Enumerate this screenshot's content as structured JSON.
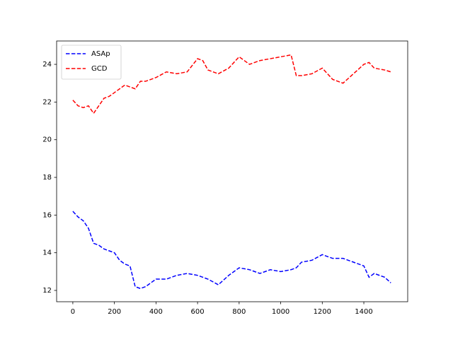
{
  "chart_data": {
    "type": "line",
    "x": [
      0,
      25,
      50,
      75,
      100,
      125,
      150,
      175,
      200,
      225,
      250,
      275,
      300,
      325,
      350,
      400,
      450,
      500,
      550,
      600,
      625,
      650,
      700,
      750,
      800,
      850,
      900,
      950,
      1000,
      1050,
      1075,
      1100,
      1150,
      1200,
      1250,
      1300,
      1350,
      1400,
      1425,
      1450,
      1500,
      1530
    ],
    "series": [
      {
        "name": "ASAp",
        "color": "#0000ff",
        "values": [
          16.2,
          15.9,
          15.7,
          15.3,
          14.5,
          14.4,
          14.2,
          14.1,
          14.0,
          13.6,
          13.4,
          13.3,
          12.2,
          12.1,
          12.2,
          12.6,
          12.6,
          12.8,
          12.9,
          12.8,
          12.7,
          12.6,
          12.3,
          12.8,
          13.2,
          13.1,
          12.9,
          13.1,
          13.0,
          13.1,
          13.2,
          13.5,
          13.6,
          13.9,
          13.7,
          13.7,
          13.5,
          13.3,
          12.7,
          12.9,
          12.7,
          12.4
        ]
      },
      {
        "name": "GCD",
        "color": "#ff0000",
        "values": [
          22.1,
          21.8,
          21.7,
          21.8,
          21.4,
          21.8,
          22.2,
          22.3,
          22.5,
          22.7,
          22.9,
          22.8,
          22.7,
          23.1,
          23.1,
          23.3,
          23.6,
          23.5,
          23.6,
          24.3,
          24.2,
          23.7,
          23.5,
          23.8,
          24.4,
          24.0,
          24.2,
          24.3,
          24.4,
          24.5,
          23.4,
          23.4,
          23.5,
          23.8,
          23.2,
          23.0,
          23.5,
          24.0,
          24.1,
          23.8,
          23.7,
          23.6
        ]
      }
    ],
    "xlim": [
      -78,
      1611
    ],
    "ylim": [
      11.4,
      25.24
    ],
    "xticks": [
      0,
      200,
      400,
      600,
      800,
      1000,
      1200,
      1400
    ],
    "yticks": [
      12,
      14,
      16,
      18,
      20,
      22,
      24
    ],
    "legend": "upper-left",
    "line_style": "dashed"
  }
}
